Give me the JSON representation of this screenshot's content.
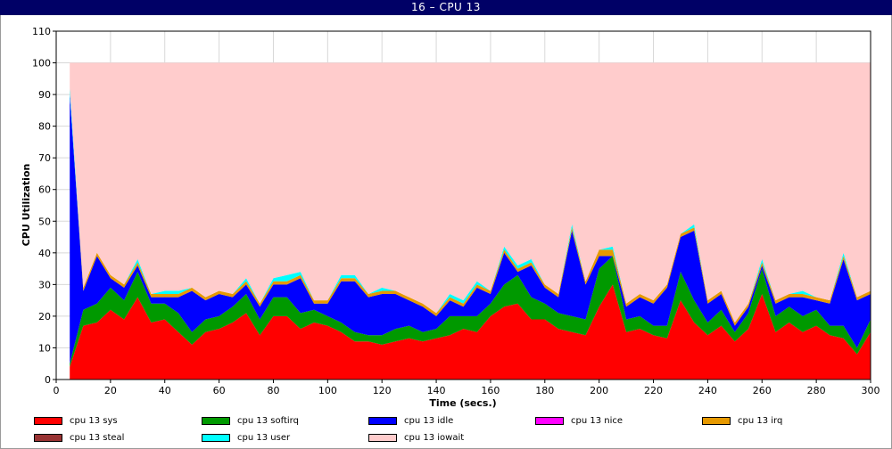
{
  "window": {
    "title": "16 – CPU 13"
  },
  "chart_data": {
    "type": "area",
    "stacked": true,
    "xlabel": "Time (secs.)",
    "ylabel": "CPU Utilization",
    "xlim": [
      0,
      300
    ],
    "ylim": [
      0,
      110
    ],
    "xticks": [
      0,
      20,
      40,
      60,
      80,
      100,
      120,
      140,
      160,
      180,
      200,
      220,
      240,
      260,
      280,
      300
    ],
    "yticks": [
      0,
      10,
      20,
      30,
      40,
      50,
      60,
      70,
      80,
      90,
      100,
      110
    ],
    "grid": true,
    "legend_position": "bottom",
    "x": [
      5,
      10,
      15,
      20,
      25,
      30,
      35,
      40,
      45,
      50,
      55,
      60,
      65,
      70,
      75,
      80,
      85,
      90,
      95,
      100,
      105,
      110,
      115,
      120,
      125,
      130,
      135,
      140,
      145,
      150,
      155,
      160,
      165,
      170,
      175,
      180,
      185,
      190,
      195,
      200,
      205,
      210,
      215,
      220,
      225,
      230,
      235,
      240,
      245,
      250,
      255,
      260,
      265,
      270,
      275,
      280,
      285,
      290,
      295,
      300
    ],
    "series": [
      {
        "name": "cpu 13 sys",
        "color": "#ff0000",
        "values": [
          4,
          17,
          18,
          22,
          19,
          26,
          18,
          19,
          15,
          11,
          15,
          16,
          18,
          21,
          14,
          20,
          20,
          16,
          18,
          17,
          15,
          12,
          12,
          11,
          12,
          13,
          12,
          13,
          14,
          16,
          15,
          20,
          23,
          24,
          19,
          19,
          16,
          15,
          14,
          23,
          30,
          15,
          16,
          14,
          13,
          25,
          18,
          14,
          17,
          12,
          16,
          27,
          15,
          18,
          15,
          17,
          14,
          13,
          8,
          15
        ]
      },
      {
        "name": "cpu 13 softirq",
        "color": "#009900",
        "values": [
          1,
          5,
          6,
          7,
          6,
          8,
          6,
          5,
          6,
          4,
          4,
          4,
          5,
          6,
          5,
          6,
          6,
          5,
          4,
          3,
          3,
          3,
          2,
          3,
          4,
          4,
          3,
          3,
          6,
          4,
          5,
          4,
          7,
          9,
          7,
          5,
          5,
          5,
          5,
          12,
          9,
          4,
          4,
          3,
          4,
          9,
          7,
          4,
          5,
          3,
          5,
          8,
          5,
          5,
          5,
          5,
          3,
          4,
          2,
          4
        ]
      },
      {
        "name": "cpu 13 idle",
        "color": "#0000ff",
        "values": [
          85,
          6,
          15,
          3,
          4,
          2,
          2,
          2,
          5,
          13,
          6,
          7,
          3,
          3,
          4,
          4,
          4,
          11,
          2,
          4,
          13,
          16,
          12,
          13,
          11,
          8,
          8,
          4,
          5,
          3,
          9,
          3,
          10,
          1,
          10,
          5,
          5,
          27,
          11,
          4,
          0,
          4,
          6,
          7,
          12,
          11,
          22,
          6,
          5,
          2,
          2,
          1,
          4,
          3,
          6,
          3,
          7,
          21,
          15,
          8
        ]
      },
      {
        "name": "cpu 13 nice",
        "color": "#ff00ff",
        "values": [
          0,
          0,
          0,
          0,
          0,
          0,
          0,
          0,
          0,
          0,
          0,
          0,
          0,
          0,
          0,
          0,
          0,
          0,
          0,
          0,
          0,
          0,
          0,
          0,
          0,
          0,
          0,
          0,
          0,
          0,
          0,
          0,
          0,
          0,
          0,
          0,
          0,
          0,
          0,
          0,
          0,
          0,
          0,
          0,
          0,
          0,
          0,
          0,
          0,
          0,
          0,
          0,
          0,
          0,
          0,
          0,
          0,
          0,
          0,
          0
        ]
      },
      {
        "name": "cpu 13 irq",
        "color": "#e69900",
        "values": [
          0,
          1,
          1,
          1,
          1,
          1,
          1,
          1,
          1,
          1,
          1,
          1,
          1,
          1,
          1,
          1,
          1,
          1,
          1,
          1,
          1,
          1,
          1,
          1,
          1,
          1,
          1,
          1,
          1,
          1,
          1,
          1,
          1,
          1,
          1,
          1,
          1,
          1,
          1,
          2,
          2,
          1,
          1,
          1,
          1,
          1,
          1,
          1,
          1,
          1,
          1,
          1,
          1,
          1,
          1,
          1,
          1,
          1,
          1,
          1
        ]
      },
      {
        "name": "cpu 13 steal",
        "color": "#993333",
        "values": [
          0,
          0,
          0,
          0,
          0,
          0,
          0,
          0,
          0,
          0,
          0,
          0,
          0,
          0,
          0,
          0,
          0,
          0,
          0,
          0,
          0,
          0,
          0,
          0,
          0,
          0,
          0,
          0,
          0,
          0,
          0,
          0,
          0,
          0,
          0,
          0,
          0,
          0,
          0,
          0,
          0,
          0,
          0,
          0,
          0,
          0,
          0,
          0,
          0,
          0,
          0,
          0,
          0,
          0,
          0,
          0,
          0,
          0,
          0,
          0
        ]
      },
      {
        "name": "cpu 13 user",
        "color": "#00ffff",
        "values": [
          2,
          0,
          0,
          0,
          0,
          1,
          0,
          1,
          1,
          0,
          0,
          0,
          0,
          1,
          0,
          1,
          2,
          1,
          0,
          0,
          1,
          1,
          0,
          1,
          0,
          0,
          0,
          0,
          1,
          1,
          1,
          0,
          1,
          1,
          1,
          0,
          0,
          1,
          0,
          0,
          1,
          0,
          0,
          0,
          0,
          0,
          1,
          0,
          0,
          0,
          0,
          1,
          0,
          0,
          1,
          0,
          0,
          1,
          0,
          0
        ]
      },
      {
        "name": "cpu 13 iowait",
        "color": "#ffcccc",
        "fill_to": 100
      }
    ]
  }
}
